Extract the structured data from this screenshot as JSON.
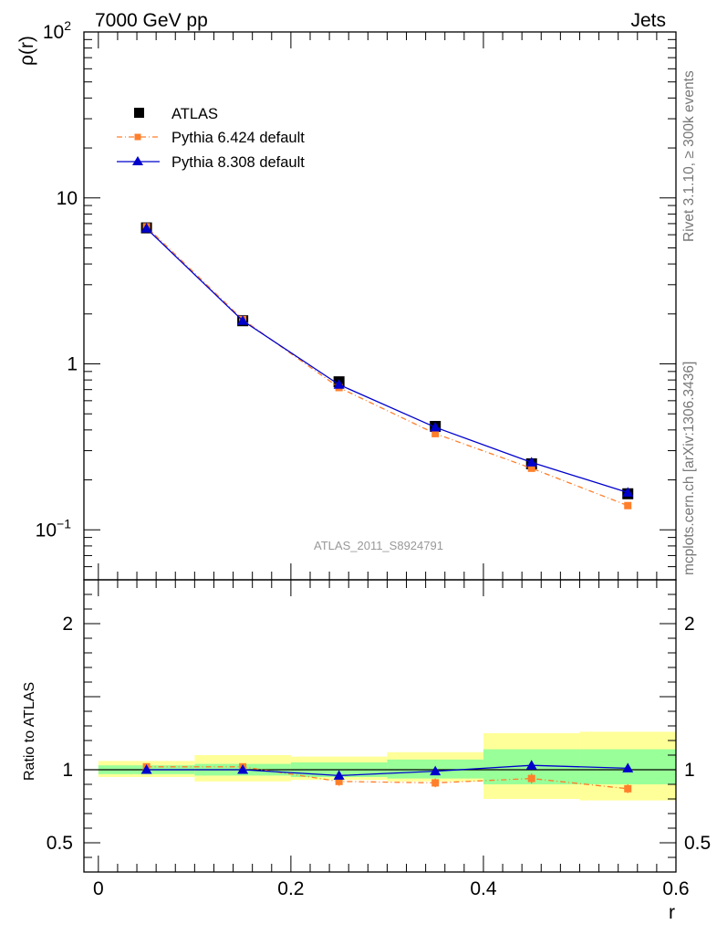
{
  "header": {
    "left": "7000 GeV pp",
    "right": "Jets"
  },
  "side_labels": {
    "rivet": "Rivet 3.1.10, ≥ 300k events",
    "mcplots": "mcplots.cern.ch [arXiv:1306.3436]"
  },
  "analysis_tag": "ATLAS_2011_S8924791",
  "colors": {
    "data": "#000000",
    "pythia6": "#ff7f2a",
    "pythia8": "#0000cc",
    "band_inner": "#99ff99",
    "band_outer": "#ffff99"
  },
  "chart_data": [
    {
      "type": "line",
      "scale": "log",
      "ylabel": "ρ(r)",
      "ylim": [
        0.05,
        100
      ],
      "y_ticks": [
        {
          "value": 100,
          "base": "10",
          "exp": "2"
        },
        {
          "value": 10,
          "label": "10"
        },
        {
          "value": 1,
          "label": "1"
        },
        {
          "value": 0.1,
          "base": "10",
          "exp": "−1"
        }
      ],
      "x": [
        0.05,
        0.15,
        0.25,
        0.35,
        0.45,
        0.55
      ],
      "bins": [
        [
          0.0,
          0.1
        ],
        [
          0.1,
          0.2
        ],
        [
          0.2,
          0.3
        ],
        [
          0.3,
          0.4
        ],
        [
          0.4,
          0.5
        ],
        [
          0.5,
          0.6
        ]
      ],
      "series": [
        {
          "name": "ATLAS",
          "style": "data",
          "values": [
            6.6,
            1.82,
            0.78,
            0.42,
            0.25,
            0.165
          ]
        },
        {
          "name": "Pythia 6.424 default",
          "style": "pythia6",
          "values": [
            6.7,
            1.85,
            0.72,
            0.38,
            0.235,
            0.14
          ]
        },
        {
          "name": "Pythia 8.308 default",
          "style": "pythia8",
          "values": [
            6.55,
            1.82,
            0.75,
            0.415,
            0.255,
            0.168
          ]
        }
      ]
    },
    {
      "type": "line",
      "scale": "linear",
      "xlabel": "r",
      "ylabel": "Ratio to ATLAS",
      "xlim": [
        -0.015,
        0.6
      ],
      "ylim": [
        0.3,
        2.3
      ],
      "x_ticks": [
        "0",
        "0.2",
        "0.4",
        "0.6"
      ],
      "x_tick_values": [
        0,
        0.2,
        0.4,
        0.6
      ],
      "y_ticks": [
        "0.5",
        "1",
        "2"
      ],
      "y_tick_values": [
        0.5,
        1,
        2
      ],
      "x": [
        0.05,
        0.15,
        0.25,
        0.35,
        0.45,
        0.55
      ],
      "bins": [
        [
          0.0,
          0.1
        ],
        [
          0.1,
          0.2
        ],
        [
          0.2,
          0.3
        ],
        [
          0.3,
          0.4
        ],
        [
          0.4,
          0.5
        ],
        [
          0.5,
          0.6
        ]
      ],
      "band_inner": [
        [
          0.97,
          1.03
        ],
        [
          0.96,
          1.04
        ],
        [
          0.95,
          1.05
        ],
        [
          0.94,
          1.07
        ],
        [
          0.9,
          1.14
        ],
        [
          0.9,
          1.14
        ]
      ],
      "band_outer": [
        [
          0.95,
          1.06
        ],
        [
          0.92,
          1.1
        ],
        [
          0.93,
          1.09
        ],
        [
          0.92,
          1.12
        ],
        [
          0.8,
          1.25
        ],
        [
          0.79,
          1.26
        ]
      ],
      "series": [
        {
          "name": "Pythia 6.424 default",
          "style": "pythia6",
          "values": [
            1.02,
            1.02,
            0.92,
            0.91,
            0.94,
            0.87
          ],
          "errors": [
            0.02,
            0.02,
            0.03,
            0.03,
            0.035,
            0.03
          ]
        },
        {
          "name": "Pythia 8.308 default",
          "style": "pythia8",
          "values": [
            1.0,
            1.0,
            0.96,
            0.99,
            1.03,
            1.01
          ]
        }
      ]
    }
  ]
}
